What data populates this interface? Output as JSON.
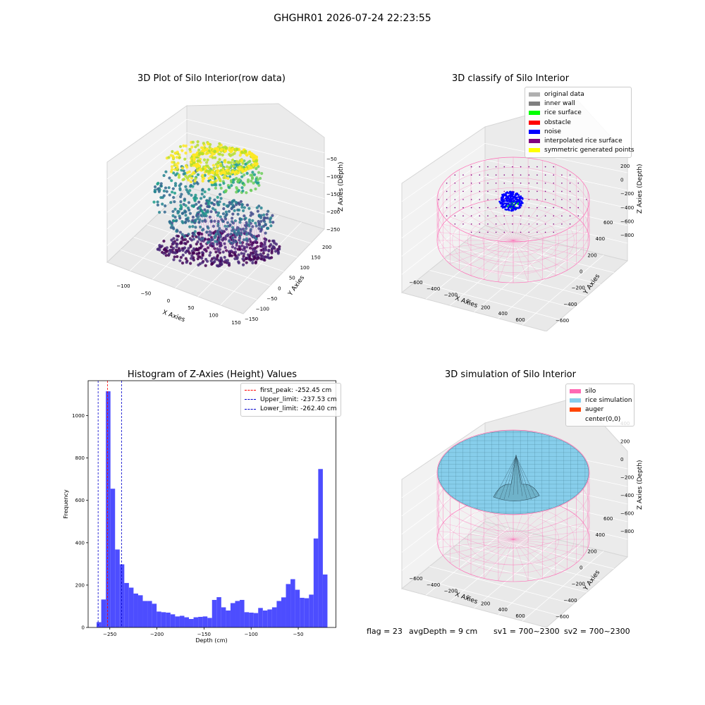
{
  "suptitle": "GHGHR01 2026-07-24 22:23:55",
  "status": {
    "flag": "flag = 23",
    "avg_depth": "avgDepth = 9 cm",
    "sv1": "sv1 = 700~2300",
    "sv2": "sv2 = 700~2300"
  },
  "colors": {
    "hist_bar": "#4d4dff",
    "first_peak": "#ff0000",
    "limits": "#0000cc",
    "silo": "#ff69b4",
    "rice_simulation": "#87ceeb",
    "auger": "#ff4500",
    "noise": "#0000ff"
  },
  "chart_data": [
    {
      "type": "scatter",
      "projection": "3d",
      "title": "3D Plot of Silo Interior(row data)",
      "xlabel": "X Axies",
      "ylabel": "Y Axies",
      "zlabel": "Z Axies (Depth)",
      "x_ticks": [
        "−100",
        "−50",
        "0",
        "50",
        "100",
        "150"
      ],
      "y_ticks": [
        "−150",
        "−100",
        "−50",
        "0",
        "50",
        "100",
        "150",
        "200"
      ],
      "z_ticks": [
        "−50",
        "−100",
        "−150",
        "−200",
        "−250"
      ],
      "colormap": "viridis",
      "xlim": [
        -130,
        160
      ],
      "ylim": [
        -160,
        210
      ],
      "zlim": [
        -270,
        -20
      ]
    },
    {
      "type": "scatter",
      "projection": "3d",
      "title": "3D classify of Silo Interior",
      "xlabel": "X Axies",
      "ylabel": "Y Axies",
      "zlabel": "Z Axies (Depth)",
      "x_ticks": [
        "−600",
        "−400",
        "−200",
        "0",
        "200",
        "400",
        "600"
      ],
      "y_ticks": [
        "−600",
        "−400",
        "−200",
        "0",
        "200",
        "400",
        "600"
      ],
      "z_ticks": [
        "200",
        "0",
        "−200",
        "−400",
        "−600",
        "−800"
      ],
      "legend": [
        {
          "label": "original data",
          "color": "#b0b0b0"
        },
        {
          "label": "inner wall",
          "color": "#808080"
        },
        {
          "label": "rice surface",
          "color": "#00ff00"
        },
        {
          "label": "obstacle",
          "color": "#ff0000"
        },
        {
          "label": "noise",
          "color": "#0000ff"
        },
        {
          "label": "interpolated rice surface",
          "color": "#800080"
        },
        {
          "label": "symmetric generated points",
          "color": "#ffff00"
        }
      ]
    },
    {
      "type": "bar",
      "title": "Histogram of Z-Axies (Height) Values",
      "xlabel": "Depth (cm)",
      "ylabel": "Frequency",
      "xlim": [
        -273,
        -10
      ],
      "ylim": [
        0,
        1165
      ],
      "x_ticks": [
        -250,
        -200,
        -150,
        -100,
        -50
      ],
      "x_tick_labels": [
        "−250",
        "−200",
        "−150",
        "−100",
        "−50"
      ],
      "y_ticks": [
        0,
        200,
        400,
        600,
        800,
        1000
      ],
      "bin_start": -264,
      "bin_width": 4.9,
      "values": [
        25,
        132,
        1115,
        655,
        368,
        298,
        210,
        188,
        160,
        152,
        125,
        125,
        112,
        75,
        72,
        70,
        62,
        52,
        55,
        48,
        40,
        48,
        50,
        52,
        45,
        130,
        143,
        95,
        80,
        115,
        125,
        130,
        72,
        70,
        68,
        92,
        80,
        85,
        95,
        125,
        142,
        205,
        228,
        178,
        140,
        138,
        155,
        420,
        748,
        250
      ],
      "vlines": [
        {
          "label": "first_peak: -252.45 cm",
          "x": -252.45,
          "color": "#ff0000"
        },
        {
          "label": "Upper_limit: -237.53 cm",
          "x": -237.53,
          "color": "#0000cc"
        },
        {
          "label": "Lower_limit: -262.40 cm",
          "x": -262.4,
          "color": "#0000cc"
        }
      ]
    },
    {
      "type": "area",
      "projection": "3d",
      "title": "3D simulation of Silo Interior",
      "xlabel": "X Axies",
      "ylabel": "Y Axies",
      "zlabel": "Z Axies (Depth)",
      "x_ticks": [
        "−600",
        "−400",
        "−200",
        "0",
        "200",
        "400",
        "600"
      ],
      "y_ticks": [
        "−600",
        "−400",
        "−200",
        "0",
        "200",
        "400",
        "600"
      ],
      "z_ticks": [
        "400",
        "200",
        "0",
        "−200",
        "−400",
        "−600",
        "−800"
      ],
      "legend": [
        {
          "label": "silo",
          "color": "#ff69b4"
        },
        {
          "label": "rice simulation",
          "color": "#87ceeb"
        },
        {
          "label": "auger",
          "color": "#ff4500"
        },
        {
          "label": "center(0,0)",
          "color": ""
        }
      ]
    }
  ]
}
